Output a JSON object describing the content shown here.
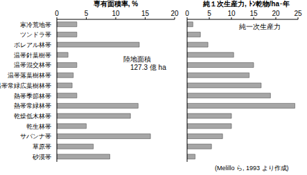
{
  "chart_data": [
    {
      "type": "bar",
      "orientation": "horizontal",
      "title": "専有面積率, %",
      "categories": [
        "寒冷荒地帯",
        "ツンドラ帯",
        "ボレアル林帯",
        "温帯針葉樹帯",
        "温帯混交林帯",
        "温帯落葉樹林帯",
        "温帯常緑広葉樹林帯",
        "熱帯季節林帯",
        "熱帯常緑林帯",
        "乾燥低木林帯",
        "乾生林帯",
        "サバンナ帯",
        "草原帯",
        "砂漠帯"
      ],
      "values": [
        3.4,
        3.4,
        14,
        1.9,
        3.4,
        2.8,
        2.6,
        3.4,
        13.8,
        12.5,
        5,
        15.9,
        6.2,
        9
      ],
      "color": "#a6a6a6",
      "xlim": [
        0,
        20
      ],
      "xticks": [
        0,
        5,
        10,
        15,
        20
      ],
      "annotations": [
        "陸地面積",
        "127.3 億 ha"
      ]
    },
    {
      "type": "bar",
      "orientation": "horizontal",
      "title": "純１次生産力, ﾄﾝ乾物/ha･年",
      "categories": [
        "寒冷荒地帯",
        "ツンドラ帯",
        "ボレアル林帯",
        "温帯針葉樹帯",
        "温帯混交林帯",
        "温帯落葉樹林帯",
        "温帯常緑広葉樹林帯",
        "熱帯季節林帯",
        "熱帯常緑林帯",
        "乾燥低木林帯",
        "乾生林帯",
        "サバンナ帯",
        "草原帯",
        "砂漠帯"
      ],
      "values": [
        1.3,
        3,
        4.7,
        10.5,
        15,
        14,
        16.7,
        18.8,
        24.3,
        10,
        10,
        8,
        5.5,
        1.8
      ],
      "color": "#a6a6a6",
      "xlim": [
        0,
        25
      ],
      "xticks": [
        0,
        5,
        10,
        15,
        20,
        25
      ],
      "tick_labels": "x",
      "annotations": [
        "純一次生産力",
        "(Melillo ら, 1993 より作成)"
      ]
    }
  ]
}
